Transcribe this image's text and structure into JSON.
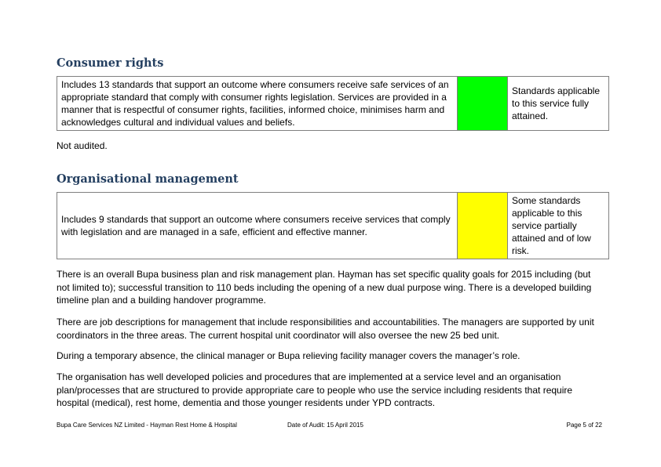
{
  "consumer_rights": {
    "heading": "Consumer rights",
    "description": "Includes 13 standards that support an outcome where consumers receive safe services of an appropriate standard that comply with consumer rights legislation. Services are provided in a manner that is respectful of consumer rights, facilities, informed choice, minimises harm and acknowledges cultural and individual values and beliefs.",
    "rating_color": "#00ff00",
    "rating_text": "Standards applicable to this service fully attained.",
    "note": "Not audited."
  },
  "organisational_management": {
    "heading": "Organisational management",
    "description": "Includes 9 standards that support an outcome where consumers receive services that comply with legislation and are managed in a safe, efficient and effective manner.",
    "rating_color": "#ffff00",
    "rating_text": "Some standards applicable to this service partially attained and of low risk.",
    "paragraphs": [
      "There is an overall Bupa business plan and risk management plan. Hayman has set specific quality goals for 2015 including (but not limited to); successful transition to 110 beds including the opening of a new dual purpose wing. There is a developed building timeline plan and a building handover programme.",
      "There are job descriptions for management that include responsibilities and accountabilities.   The managers are supported by unit coordinators in the three areas.  The current hospital unit coordinator will also oversee the new 25 bed unit.",
      "During a temporary absence, the clinical manager or Bupa relieving facility manager covers the manager’s role.",
      "The organisation has well developed policies and procedures that are implemented at a service level and an organisation plan/processes that are structured to provide appropriate care to people who use the service including residents that require hospital (medical), rest home, dementia and those younger residents under YPD contracts."
    ]
  },
  "footer": {
    "provider": "Bupa Care Services NZ Limited - Hayman Rest Home & Hospital",
    "audit_date": "Date of Audit: 15 April 2015",
    "page": "Page 5 of 22"
  }
}
